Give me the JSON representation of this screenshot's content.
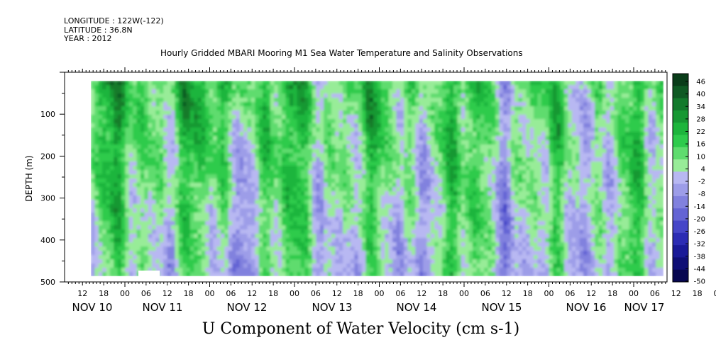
{
  "header": {
    "longitude": "LONGITUDE : 122W(-122)",
    "latitude": "LATITUDE : 36.8N",
    "year": "YEAR : 2012",
    "title": "Hourly Gridded MBARI Mooring M1 Sea Water Temperature and Salinity Observations"
  },
  "chart_data": {
    "type": "heatmap",
    "title": "Hourly Gridded MBARI Mooring M1 Sea Water Temperature and Salinity Observations",
    "xlabel": "U Component of Water Velocity (cm s-1)",
    "ylabel": "DEPTH (m)",
    "y_range": [
      500,
      0
    ],
    "y_axis_inverted": true,
    "y_ticks": [
      "100",
      "200",
      "300",
      "400",
      "500"
    ],
    "x_hour_ticks": [
      "12",
      "18",
      "00",
      "06",
      "12",
      "18",
      "00",
      "06",
      "12",
      "18",
      "00",
      "06",
      "12",
      "18",
      "00",
      "06",
      "12",
      "18",
      "00",
      "06",
      "12",
      "18",
      "00",
      "06",
      "12",
      "18",
      "00",
      "06",
      "12",
      "18",
      "00",
      "06"
    ],
    "x_date_labels": [
      "NOV 10",
      "NOV 11",
      "NOV 12",
      "NOV 13",
      "NOV 14",
      "NOV 15",
      "NOV 16",
      "NOV 17"
    ],
    "colorbar": {
      "levels": [
        "46",
        "40",
        "34",
        "28",
        "22",
        "16",
        "10",
        "4",
        "-2",
        "-8",
        "-14",
        "-20",
        "-26",
        "-32",
        "-38",
        "-44",
        "-50"
      ],
      "colors": [
        "#0a3d1a",
        "#0f5a24",
        "#137a2c",
        "#179833",
        "#1db53c",
        "#2ecb4c",
        "#5fdc6e",
        "#98ec98",
        "#b8b8f2",
        "#9d9de8",
        "#8181de",
        "#6464d4",
        "#4646c8",
        "#2c2cb4",
        "#1a1a98",
        "#0f0f76",
        "#070750"
      ]
    },
    "values_description": "Velocity field mostly between -20 and 28 cm/s; green (positive) dominates upper 200 m early in period, blue (negative) bands at depth"
  }
}
